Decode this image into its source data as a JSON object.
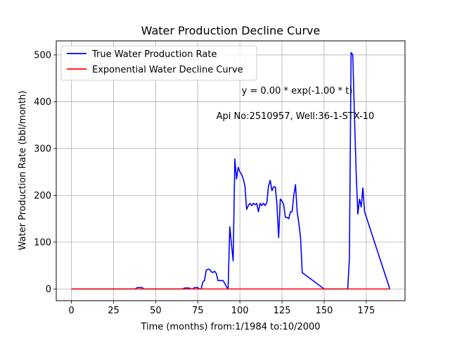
{
  "chart_data": {
    "type": "line",
    "title": "Water Production Decline Curve",
    "xlabel": "Time (months) from:1/1984 to:10/2000",
    "ylabel": "Water Production Rate (bbl/month)",
    "xlim": [
      -9,
      198
    ],
    "ylim": [
      -25,
      530
    ],
    "xticks": [
      0,
      25,
      50,
      75,
      100,
      125,
      150,
      175
    ],
    "yticks": [
      0,
      100,
      200,
      300,
      400,
      500
    ],
    "grid": true,
    "legend": "upper left",
    "annotations": [
      {
        "text": "y = 0.00 * exp(-1.00 * t)",
        "x": 101,
        "y": 417
      },
      {
        "text": "Api No:2510957, Well:36-1-STX-10",
        "x": 86,
        "y": 363
      }
    ],
    "series": [
      {
        "name": "True Water Production Rate",
        "color": "#0000ff",
        "x": [
          0,
          38,
          39,
          40,
          41,
          42,
          43,
          50,
          60,
          66,
          67,
          68,
          69,
          70,
          71,
          72,
          73,
          74,
          75,
          76,
          77,
          78,
          79,
          80,
          81,
          82,
          83,
          84,
          85,
          86,
          87,
          88,
          89,
          90,
          91,
          92,
          93,
          94,
          95,
          96,
          97,
          98,
          99,
          100,
          101,
          102,
          103,
          104,
          105,
          106,
          107,
          108,
          109,
          110,
          111,
          112,
          113,
          114,
          115,
          116,
          117,
          118,
          119,
          120,
          121,
          122,
          123,
          124,
          125,
          126,
          127,
          128,
          129,
          130,
          131,
          132,
          133,
          134,
          135,
          136,
          137,
          150,
          163,
          164,
          165,
          166,
          167,
          168,
          169,
          170,
          171,
          172,
          173,
          174,
          189
        ],
        "y": [
          0,
          0,
          3,
          3,
          3,
          3,
          0,
          0,
          0,
          0,
          2,
          2,
          2,
          2,
          0,
          0,
          3,
          3,
          3,
          0,
          0,
          15,
          18,
          40,
          42,
          42,
          37,
          35,
          38,
          33,
          18,
          18,
          18,
          18,
          12,
          5,
          0,
          133,
          95,
          60,
          278,
          235,
          260,
          250,
          245,
          235,
          220,
          170,
          178,
          183,
          178,
          183,
          180,
          183,
          165,
          183,
          178,
          183,
          178,
          185,
          220,
          232,
          210,
          218,
          218,
          180,
          110,
          192,
          188,
          180,
          153,
          153,
          150,
          165,
          165,
          200,
          223,
          165,
          140,
          110,
          35,
          0,
          0,
          0,
          65,
          505,
          500,
          370,
          250,
          160,
          192,
          175,
          216,
          165,
          0
        ]
      },
      {
        "name": "Exponential Water Decline Curve",
        "color": "#ff0000",
        "x": [
          0,
          189
        ],
        "y": [
          0,
          0
        ]
      }
    ]
  }
}
